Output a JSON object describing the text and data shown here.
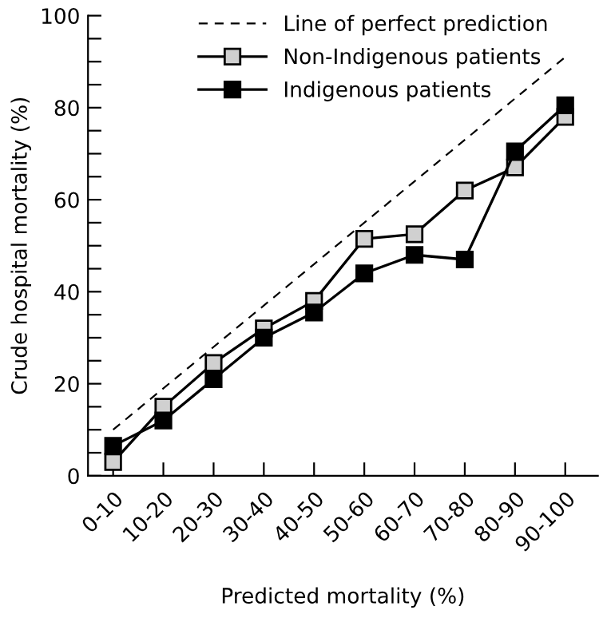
{
  "chart_data": {
    "type": "line",
    "xlabel": "Predicted mortality (%)",
    "ylabel": "Crude hospital mortality (%)",
    "categories": [
      "0-10",
      "10-20",
      "20-30",
      "30-40",
      "40-50",
      "50-60",
      "60-70",
      "70-80",
      "80-90",
      "90-100"
    ],
    "series": [
      {
        "name": "Line of perfect prediction",
        "color": "#000000",
        "line_style": "dashed",
        "marker": "none",
        "values": [
          10,
          19,
          28,
          37,
          46,
          55,
          64,
          73,
          82,
          91
        ]
      },
      {
        "name": "Non-Indigenous patients",
        "color": "#d0d0d0",
        "marker": "square",
        "values": [
          3,
          15,
          24.5,
          32,
          38,
          51.5,
          52.5,
          62,
          67,
          78
        ]
      },
      {
        "name": "Indigenous patients",
        "color": "#000000",
        "marker": "square",
        "values": [
          6.5,
          12,
          21,
          30,
          35.5,
          44,
          48,
          47,
          70.5,
          80.5
        ]
      }
    ],
    "ylim": [
      0,
      100
    ],
    "yticks": [
      0,
      {
        "value": 5,
        "label": null
      },
      {
        "value": 10,
        "label": null
      },
      {
        "value": 15,
        "label": null
      },
      20,
      {
        "value": 25,
        "label": null
      },
      {
        "value": 30,
        "label": null
      },
      {
        "value": 35,
        "label": null
      },
      40,
      {
        "value": 45,
        "label": null
      },
      {
        "value": 50,
        "label": null
      },
      {
        "value": 55,
        "label": null
      },
      60,
      {
        "value": 65,
        "label": null
      },
      {
        "value": 70,
        "label": null
      },
      {
        "value": 75,
        "label": null
      },
      80,
      {
        "value": 85,
        "label": null
      },
      {
        "value": 90,
        "label": null
      },
      {
        "value": 95,
        "label": null
      },
      100
    ],
    "grid": false,
    "legend": "top"
  }
}
